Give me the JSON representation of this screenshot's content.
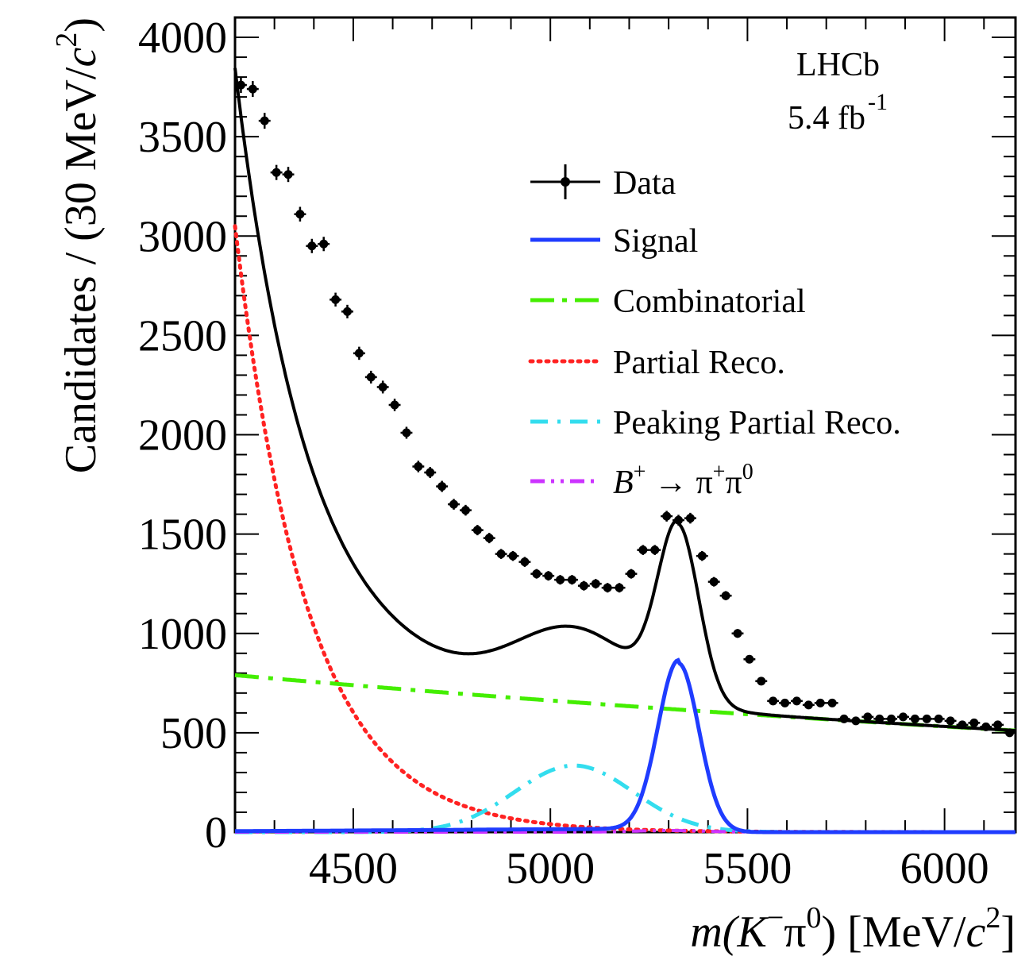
{
  "chart_data": {
    "type": "line",
    "experiment": "LHCb",
    "luminosity": "5.4 fb",
    "luminosity_exponent": "-1",
    "xlabel": {
      "pre": "m(K",
      "sup1": "−",
      "mid": "π",
      "sup2": "0",
      "post": ") [MeV/",
      "c": "c",
      "sup3": "2",
      "close": "]"
    },
    "ylabel": {
      "pre": "Candidates / (30 MeV/",
      "c": "c",
      "sup": "2",
      "close": ")"
    },
    "xlim": [
      4200,
      6180
    ],
    "ylim": [
      0,
      4100
    ],
    "x_ticks": [
      4500,
      5000,
      5500,
      6000
    ],
    "y_ticks": [
      0,
      500,
      1000,
      1500,
      2000,
      2500,
      3000,
      3500,
      4000
    ],
    "legend_position": "top-right",
    "legend": [
      {
        "key": "data",
        "label": "Data",
        "color": "#000000",
        "style": "marker"
      },
      {
        "key": "signal",
        "label": "Signal",
        "color": "#1f3cff",
        "style": "solid"
      },
      {
        "key": "combinatorial",
        "label": "Combinatorial",
        "color": "#44ee00",
        "style": "dashdot"
      },
      {
        "key": "partial",
        "label": "Partial Reco.",
        "color": "#ff2222",
        "style": "dotted"
      },
      {
        "key": "peaking",
        "label": "Peaking Partial Reco.",
        "color": "#33ddee",
        "style": "dashdot"
      },
      {
        "key": "pipi",
        "label_parts": {
          "b": "B",
          "bsup": "+",
          "arrow": " → π",
          "pisup1": "+",
          "pi2": "π",
          "pisup2": "0"
        },
        "color": "#cc33ff",
        "style": "dashdotdot"
      }
    ],
    "data_points": {
      "x": [
        4215,
        4245,
        4275,
        4305,
        4335,
        4365,
        4395,
        4425,
        4455,
        4485,
        4515,
        4545,
        4575,
        4605,
        4635,
        4665,
        4695,
        4725,
        4755,
        4785,
        4815,
        4845,
        4875,
        4905,
        4935,
        4965,
        4995,
        5025,
        5055,
        5085,
        5115,
        5145,
        5175,
        5205,
        5235,
        5265,
        5295,
        5325,
        5355,
        5385,
        5415,
        5445,
        5475,
        5505,
        5535,
        5565,
        5595,
        5625,
        5655,
        5685,
        5715,
        5745,
        5775,
        5805,
        5835,
        5865,
        5895,
        5925,
        5955,
        5985,
        6015,
        6045,
        6075,
        6105,
        6135,
        6165
      ],
      "y": [
        3760,
        3740,
        3580,
        3320,
        3310,
        3110,
        2950,
        2960,
        2680,
        2620,
        2410,
        2290,
        2240,
        2150,
        2010,
        1840,
        1810,
        1740,
        1650,
        1620,
        1520,
        1480,
        1400,
        1390,
        1360,
        1300,
        1290,
        1270,
        1270,
        1240,
        1250,
        1230,
        1230,
        1300,
        1420,
        1420,
        1590,
        1570,
        1580,
        1390,
        1260,
        1190,
        1000,
        870,
        760,
        660,
        650,
        660,
        640,
        650,
        650,
        570,
        560,
        580,
        570,
        570,
        580,
        570,
        570,
        570,
        560,
        540,
        550,
        530,
        540,
        500
      ],
      "yerr": [
        40,
        40,
        40,
        38,
        38,
        37,
        36,
        36,
        35,
        34,
        33,
        32,
        32,
        31,
        30,
        29,
        28,
        28,
        27,
        27,
        26,
        26,
        25,
        25,
        25,
        24,
        24,
        24,
        24,
        24,
        24,
        24,
        24,
        24,
        25,
        25,
        27,
        27,
        27,
        25,
        24,
        23,
        22,
        20,
        19,
        18,
        18,
        18,
        18,
        18,
        18,
        17,
        17,
        17,
        17,
        17,
        17,
        17,
        17,
        17,
        17,
        17,
        17,
        17,
        17,
        17
      ]
    },
    "components": {
      "signal": {
        "type": "crystal_ball",
        "mean": 5325,
        "sigma": 52,
        "peak": 850,
        "tail_scale": 0.018,
        "tail_decay": 420
      },
      "combinatorial": {
        "type": "exponential",
        "a_at_xmin": 790,
        "slope_per_mev": 0.00022
      },
      "partial": {
        "type": "exponential",
        "a_at_xmin": 3050,
        "decay_mev": 185
      },
      "peaking": {
        "type": "gaussian",
        "mean": 5060,
        "sigma": 150,
        "peak": 335
      },
      "pipi": {
        "type": "gaussian",
        "mean": 5300,
        "sigma": 90,
        "peak": 8
      }
    }
  }
}
